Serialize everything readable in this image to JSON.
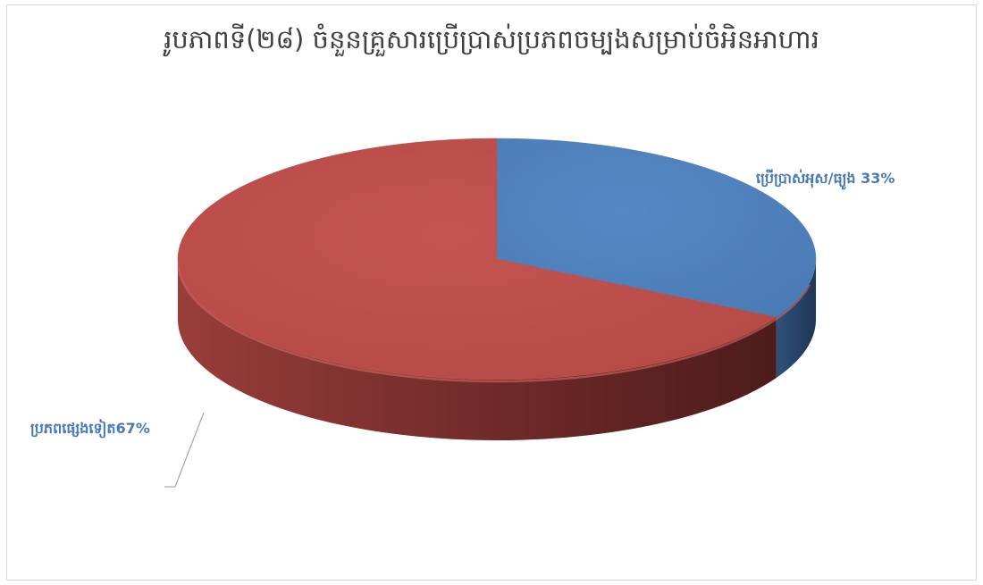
{
  "chart_data": {
    "type": "pie",
    "title": "រូបភាពទី(២៨) ចំនួនគ្រួសារប្រើប្រាស់ប្រភពចម្បងសម្រាប់ចំអិនអាហារ",
    "categories": [
      "ប្រើប្រាស់អុស/ធ្យូង",
      "ប្រភពផ្សេងទៀត"
    ],
    "values": [
      33,
      67
    ],
    "labels": [
      "ប្រើប្រាស់អុស/ធ្យូង 33%",
      "ប្រភពផ្សេងទៀត67%"
    ],
    "colors": [
      "#4f81bd",
      "#c0504d"
    ],
    "dark_colors": [
      "#2c4a72",
      "#7a2e2b"
    ],
    "label_color": "#4a7ab5",
    "style": "3d",
    "legend": "none"
  }
}
